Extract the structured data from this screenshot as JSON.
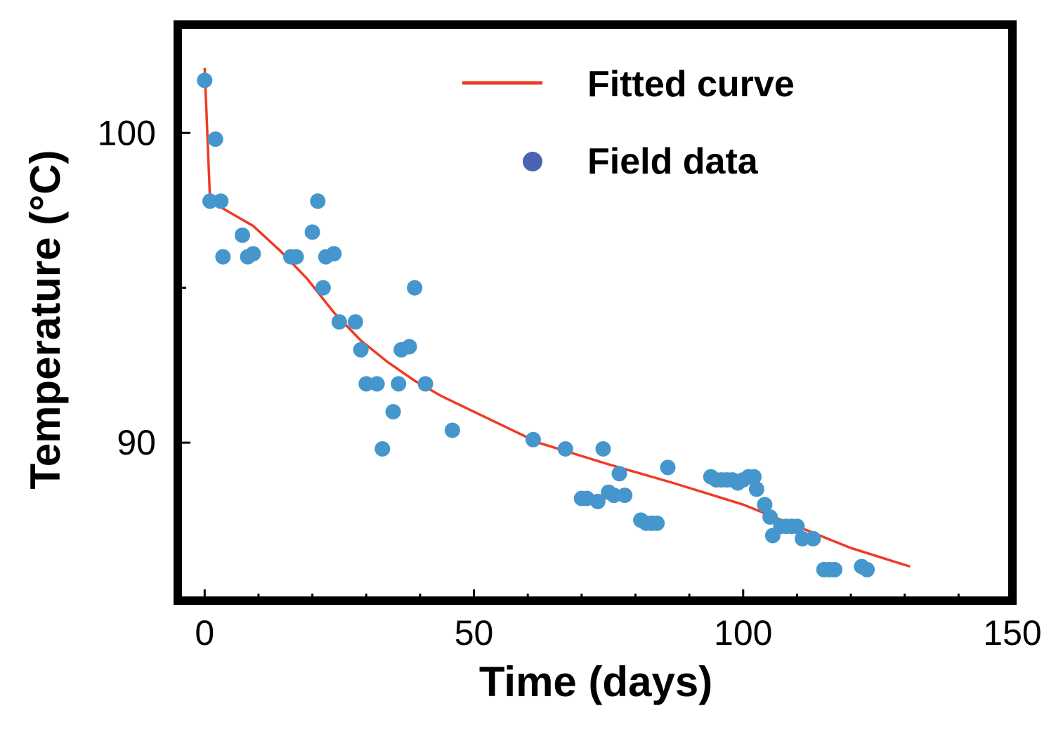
{
  "chart_data": {
    "type": "scatter",
    "title": "",
    "xlabel": "Time (days)",
    "ylabel": "Temperature (°C)",
    "xlim": [
      -5,
      150
    ],
    "ylim": [
      84.9,
      103.5
    ],
    "xticks": [
      0,
      50,
      100,
      150
    ],
    "xtick_labels": [
      "0",
      "50",
      "100",
      "150"
    ],
    "yticks": [
      90,
      100
    ],
    "ytick_labels": [
      "90",
      "100"
    ],
    "grid": false,
    "legend_position": "top-right",
    "series": [
      {
        "name": "Fitted curve",
        "kind": "line",
        "color": "#ef3b24",
        "points": [
          [
            0,
            102.1
          ],
          [
            1,
            97.8
          ],
          [
            4,
            97.5
          ],
          [
            9,
            97.0
          ],
          [
            14,
            96.2
          ],
          [
            19,
            95.3
          ],
          [
            24,
            94.2
          ],
          [
            29,
            93.3
          ],
          [
            34,
            92.6
          ],
          [
            39,
            92.0
          ],
          [
            44,
            91.5
          ],
          [
            50,
            91.0
          ],
          [
            62,
            90.0
          ],
          [
            75,
            89.3
          ],
          [
            87,
            88.7
          ],
          [
            100,
            88.0
          ],
          [
            110,
            87.3
          ],
          [
            120,
            86.6
          ],
          [
            131,
            86.0
          ]
        ]
      },
      {
        "name": "Field data",
        "kind": "scatter",
        "color": "#4596cc",
        "legend_color": "#4a63b0",
        "points": [
          [
            0,
            101.7
          ],
          [
            1,
            97.8
          ],
          [
            2,
            99.8
          ],
          [
            3,
            97.8
          ],
          [
            3.4,
            96.0
          ],
          [
            7,
            96.7
          ],
          [
            8,
            96.0
          ],
          [
            9,
            96.1
          ],
          [
            16,
            96.0
          ],
          [
            17,
            96.0
          ],
          [
            20,
            96.8
          ],
          [
            21,
            97.8
          ],
          [
            22,
            95.0
          ],
          [
            22.5,
            96.0
          ],
          [
            24,
            96.1
          ],
          [
            25,
            93.9
          ],
          [
            28,
            93.9
          ],
          [
            29,
            93.0
          ],
          [
            30,
            91.9
          ],
          [
            32,
            91.9
          ],
          [
            33,
            89.8
          ],
          [
            35,
            91.0
          ],
          [
            36,
            91.9
          ],
          [
            36.5,
            93.0
          ],
          [
            38,
            93.1
          ],
          [
            39,
            95.0
          ],
          [
            41,
            91.9
          ],
          [
            46,
            90.4
          ],
          [
            61,
            90.1
          ],
          [
            67,
            89.8
          ],
          [
            70,
            88.2
          ],
          [
            71,
            88.2
          ],
          [
            73,
            88.1
          ],
          [
            74,
            89.8
          ],
          [
            75,
            88.4
          ],
          [
            76,
            88.3
          ],
          [
            77,
            89.0
          ],
          [
            78,
            88.3
          ],
          [
            81,
            87.5
          ],
          [
            82,
            87.4
          ],
          [
            83,
            87.4
          ],
          [
            84,
            87.4
          ],
          [
            86,
            89.2
          ],
          [
            94,
            88.9
          ],
          [
            95,
            88.8
          ],
          [
            96,
            88.8
          ],
          [
            97,
            88.8
          ],
          [
            98,
            88.8
          ],
          [
            99,
            88.7
          ],
          [
            100,
            88.8
          ],
          [
            101,
            88.9
          ],
          [
            102,
            88.9
          ],
          [
            102.5,
            88.5
          ],
          [
            104,
            88.0
          ],
          [
            105,
            87.6
          ],
          [
            105.5,
            87.0
          ],
          [
            107,
            87.3
          ],
          [
            108,
            87.3
          ],
          [
            109,
            87.3
          ],
          [
            110,
            87.3
          ],
          [
            111,
            86.9
          ],
          [
            113,
            86.9
          ],
          [
            115,
            85.9
          ],
          [
            116,
            85.9
          ],
          [
            117,
            85.9
          ],
          [
            122,
            86.0
          ],
          [
            123,
            85.9
          ]
        ]
      }
    ]
  }
}
